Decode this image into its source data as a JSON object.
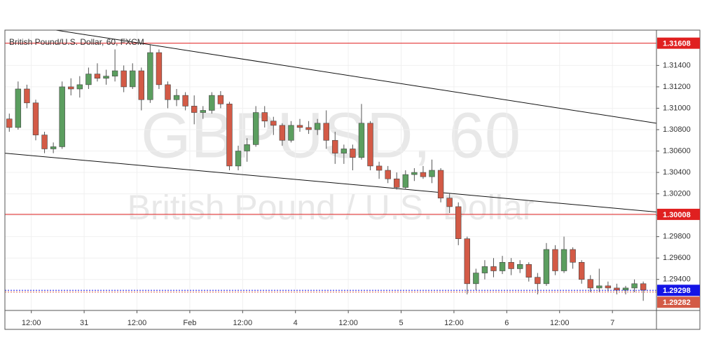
{
  "chart_data": {
    "type": "candlestick",
    "title": "British Pound/U.S. Dollar, 60, FXCM",
    "watermark": [
      "GBPUSD, 60",
      "British Pound / U.S. Dollar"
    ],
    "up_color": "#5b9e5f",
    "down_color": "#d35a46",
    "x": [
      0,
      2,
      4,
      6,
      8,
      10,
      12,
      14,
      16,
      18,
      20,
      22,
      24,
      26,
      28,
      30,
      32,
      34,
      36,
      38,
      40,
      42,
      44,
      46,
      48,
      50,
      52,
      54,
      56,
      58,
      60,
      62,
      64,
      66,
      68,
      70,
      72,
      74,
      76,
      78,
      80,
      82,
      84,
      86,
      88,
      90,
      92,
      94,
      96,
      98,
      100,
      102,
      104,
      106,
      108,
      110,
      112,
      114,
      116,
      118,
      120,
      122,
      124,
      126,
      128,
      130,
      132,
      134,
      136,
      138,
      140,
      142,
      144
    ],
    "open": [
      1.309,
      1.3082,
      1.3118,
      1.3105,
      1.3075,
      1.3062,
      1.3064,
      1.312,
      1.3118,
      1.3122,
      1.3132,
      1.3128,
      1.313,
      1.3135,
      1.312,
      1.3135,
      1.3108,
      1.3152,
      1.3122,
      1.3108,
      1.3112,
      1.3102,
      1.3096,
      1.3098,
      1.3112,
      1.3104,
      1.3046,
      1.306,
      1.3066,
      1.3096,
      1.3088,
      1.3084,
      1.307,
      1.3084,
      1.3082,
      1.308,
      1.3086,
      1.307,
      1.3058,
      1.3062,
      1.3054,
      1.3086,
      1.3046,
      1.3042,
      1.3034,
      1.3026,
      1.3038,
      1.304,
      1.3036,
      1.3042,
      1.3016,
      1.3008,
      1.2978,
      1.2936,
      1.2946,
      1.2952,
      1.2948,
      1.2956,
      1.295,
      1.2954,
      1.2942,
      1.2936,
      1.2968,
      1.2948,
      1.2968,
      1.2956,
      1.294,
      1.2932,
      1.2934,
      1.2932,
      1.293,
      1.2932,
      1.2936
    ],
    "high": [
      1.3095,
      1.3125,
      1.3122,
      1.3108,
      1.3078,
      1.3068,
      1.3125,
      1.3128,
      1.313,
      1.3138,
      1.3142,
      1.3136,
      1.3155,
      1.314,
      1.3142,
      1.3138,
      1.316,
      1.3155,
      1.3125,
      1.3118,
      1.3115,
      1.3112,
      1.3102,
      1.3115,
      1.3116,
      1.3106,
      1.3065,
      1.3072,
      1.3102,
      1.3102,
      1.3092,
      1.3086,
      1.3088,
      1.309,
      1.3088,
      1.309,
      1.3098,
      1.3078,
      1.3066,
      1.3066,
      1.3104,
      1.3088,
      1.305,
      1.3046,
      1.304,
      1.3042,
      1.3044,
      1.3046,
      1.3052,
      1.3044,
      1.302,
      1.3012,
      1.298,
      1.295,
      1.2958,
      1.296,
      1.2962,
      1.296,
      1.2958,
      1.2956,
      1.2946,
      1.2974,
      1.2972,
      1.298,
      1.297,
      1.2958,
      1.2944,
      1.295,
      1.2938,
      1.2936,
      1.2934,
      1.294,
      1.2938
    ],
    "low": [
      1.3078,
      1.308,
      1.31,
      1.307,
      1.3058,
      1.3058,
      1.3062,
      1.3112,
      1.311,
      1.3118,
      1.3125,
      1.3122,
      1.3125,
      1.3115,
      1.3118,
      1.3098,
      1.3105,
      1.3118,
      1.31,
      1.3102,
      1.3098,
      1.3085,
      1.309,
      1.3095,
      1.31,
      1.3042,
      1.3042,
      1.305,
      1.3064,
      1.3082,
      1.3075,
      1.3065,
      1.3068,
      1.3078,
      1.3076,
      1.3075,
      1.3062,
      1.3048,
      1.3048,
      1.3042,
      1.3052,
      1.3042,
      1.3034,
      1.303,
      1.3024,
      1.3024,
      1.3032,
      1.3034,
      1.303,
      1.3012,
      1.3002,
      1.2972,
      1.2926,
      1.293,
      1.294,
      1.2942,
      1.2945,
      1.2944,
      1.2946,
      1.2938,
      1.2926,
      1.2934,
      1.2944,
      1.2946,
      1.295,
      1.2936,
      1.2928,
      1.2928,
      1.2929,
      1.2926,
      1.2926,
      1.2928,
      1.292
    ],
    "close": [
      1.3082,
      1.3118,
      1.3105,
      1.3075,
      1.3062,
      1.3064,
      1.312,
      1.3118,
      1.3122,
      1.3132,
      1.3128,
      1.313,
      1.3135,
      1.312,
      1.3135,
      1.3108,
      1.3152,
      1.3122,
      1.3108,
      1.3112,
      1.3102,
      1.3096,
      1.3098,
      1.3112,
      1.3104,
      1.3046,
      1.306,
      1.3066,
      1.3096,
      1.3088,
      1.3084,
      1.307,
      1.3084,
      1.3082,
      1.308,
      1.3086,
      1.307,
      1.3058,
      1.3062,
      1.3054,
      1.3086,
      1.3046,
      1.3042,
      1.3034,
      1.3026,
      1.3038,
      1.304,
      1.3036,
      1.3042,
      1.3016,
      1.3008,
      1.2978,
      1.2936,
      1.2946,
      1.2952,
      1.2948,
      1.2956,
      1.295,
      1.2954,
      1.2942,
      1.2936,
      1.2968,
      1.2948,
      1.2968,
      1.2956,
      1.294,
      1.2932,
      1.2934,
      1.2932,
      1.293,
      1.2932,
      1.2936,
      1.293
    ],
    "xlim": [
      -1,
      147
    ],
    "ylim": [
      1.2911,
      1.3173
    ],
    "xticks": [
      {
        "value": 5,
        "label": "12:00"
      },
      {
        "value": 17,
        "label": "31"
      },
      {
        "value": 29,
        "label": "12:00"
      },
      {
        "value": 41,
        "label": "Feb"
      },
      {
        "value": 53,
        "label": "12:00"
      },
      {
        "value": 65,
        "label": "4"
      },
      {
        "value": 77,
        "label": "12:00"
      },
      {
        "value": 89,
        "label": "5"
      },
      {
        "value": 101,
        "label": "12:00"
      },
      {
        "value": 113,
        "label": "6"
      },
      {
        "value": 125,
        "label": "12:00"
      },
      {
        "value": 137,
        "label": "7"
      }
    ],
    "yticks": [
      {
        "value": 1.294,
        "label": "1.29400"
      },
      {
        "value": 1.296,
        "label": "1.29600"
      },
      {
        "value": 1.298,
        "label": "1.29800"
      },
      {
        "value": 1.3,
        "label": "1.30000"
      },
      {
        "value": 1.302,
        "label": "1.30200"
      },
      {
        "value": 1.304,
        "label": "1.30400"
      },
      {
        "value": 1.306,
        "label": "1.30600"
      },
      {
        "value": 1.308,
        "label": "1.30800"
      },
      {
        "value": 1.31,
        "label": "1.31000"
      },
      {
        "value": 1.312,
        "label": "1.31200"
      },
      {
        "value": 1.314,
        "label": "1.31400"
      }
    ],
    "grid": true,
    "hlines": [
      {
        "value": 1.31608,
        "color": "#e02020"
      },
      {
        "value": 1.30008,
        "color": "#e02020"
      }
    ],
    "price_markers": [
      {
        "value": 1.29298,
        "color": "#1414e6"
      },
      {
        "value": 1.29282,
        "color": "#d35a46"
      }
    ],
    "trendlines": [
      {
        "x": [
          10.6,
          147
        ],
        "y": [
          1.3173,
          1.3086
        ]
      },
      {
        "x": [
          -1,
          147
        ],
        "y": [
          1.3058,
          1.3003
        ]
      }
    ]
  }
}
